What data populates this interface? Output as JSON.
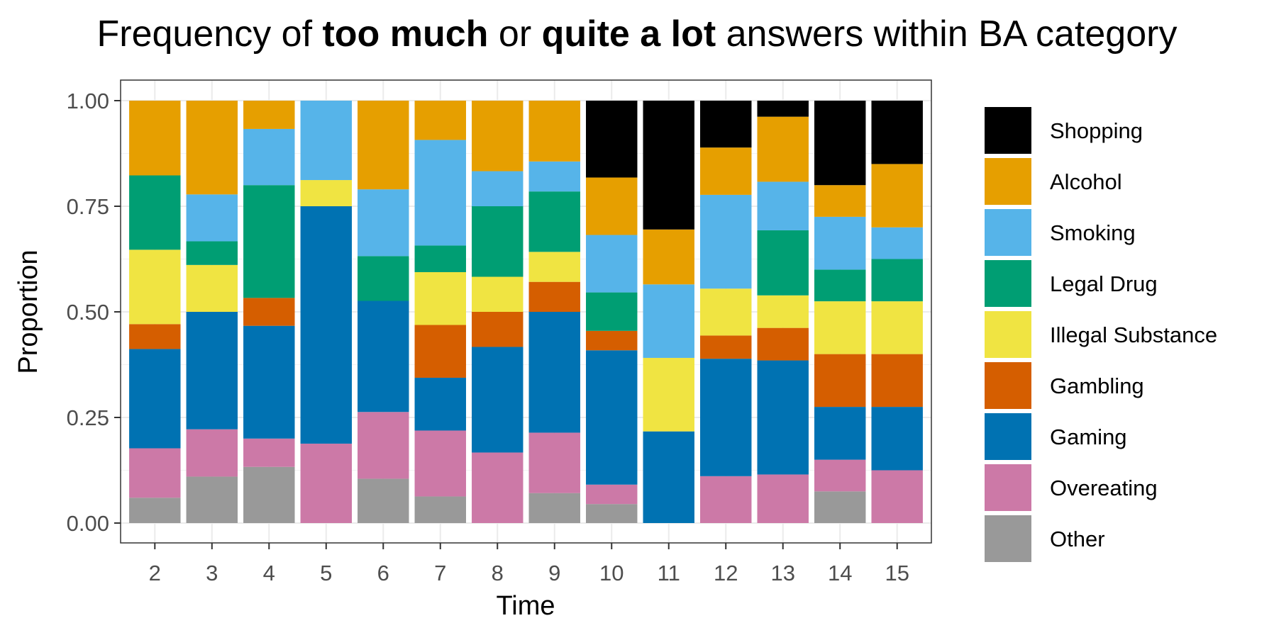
{
  "chart_data": {
    "type": "bar",
    "stacked": true,
    "title_parts": [
      {
        "text": "Frequency of ",
        "bold": false
      },
      {
        "text": "too much",
        "bold": true
      },
      {
        "text": " or ",
        "bold": false
      },
      {
        "text": "quite a lot",
        "bold": true
      },
      {
        "text": " answers within BA category",
        "bold": false
      }
    ],
    "xlabel": "Time",
    "ylabel": "Proportion",
    "ylim": [
      0,
      1
    ],
    "yticks": [
      "0.00",
      "0.25",
      "0.50",
      "0.75",
      "1.00"
    ],
    "ytick_values": [
      0,
      0.25,
      0.5,
      0.75,
      1.0
    ],
    "categories": [
      "2",
      "3",
      "4",
      "5",
      "6",
      "7",
      "8",
      "9",
      "10",
      "11",
      "12",
      "13",
      "14",
      "15"
    ],
    "grid": true,
    "legend_position": "right",
    "series": [
      {
        "name": "Other",
        "color": "#999999",
        "values": [
          0.06,
          0.11,
          0.133,
          0,
          0.105,
          0.063,
          0,
          0.071,
          0.045,
          0,
          0,
          0,
          0.075,
          0
        ]
      },
      {
        "name": "Overeating",
        "color": "#CC79A7",
        "values": [
          0.117,
          0.112,
          0.067,
          0.188,
          0.158,
          0.156,
          0.167,
          0.143,
          0.046,
          0,
          0.111,
          0.115,
          0.075,
          0.125
        ]
      },
      {
        "name": "Gaming",
        "color": "#0072B2",
        "values": [
          0.235,
          0.278,
          0.267,
          0.562,
          0.263,
          0.125,
          0.25,
          0.286,
          0.318,
          0.217,
          0.278,
          0.27,
          0.125,
          0.15
        ]
      },
      {
        "name": "Gambling",
        "color": "#D55E00",
        "values": [
          0.059,
          0,
          0.066,
          0,
          0,
          0.125,
          0.083,
          0.071,
          0.046,
          0,
          0.055,
          0.077,
          0.125,
          0.125
        ]
      },
      {
        "name": "Illegal Substance",
        "color": "#F0E442",
        "values": [
          0.176,
          0.111,
          0,
          0.062,
          0,
          0.125,
          0.083,
          0.071,
          0,
          0.174,
          0.111,
          0.077,
          0.125,
          0.125
        ]
      },
      {
        "name": "Legal Drug",
        "color": "#009E73",
        "values": [
          0.176,
          0.056,
          0.267,
          0,
          0.106,
          0.063,
          0.167,
          0.143,
          0.091,
          0,
          0,
          0.154,
          0.075,
          0.1
        ]
      },
      {
        "name": "Smoking",
        "color": "#56B4E9",
        "values": [
          0,
          0.111,
          0.133,
          0.188,
          0.158,
          0.25,
          0.083,
          0.071,
          0.136,
          0.174,
          0.222,
          0.115,
          0.125,
          0.075
        ]
      },
      {
        "name": "Alcohol",
        "color": "#E69F00",
        "values": [
          0.177,
          0.222,
          0.067,
          0,
          0.21,
          0.093,
          0.167,
          0.144,
          0.136,
          0.13,
          0.112,
          0.154,
          0.075,
          0.15
        ]
      },
      {
        "name": "Shopping",
        "color": "#000000",
        "values": [
          0,
          0,
          0,
          0,
          0,
          0,
          0,
          0,
          0.182,
          0.305,
          0.111,
          0.038,
          0.2,
          0.15
        ]
      }
    ],
    "legend_order": [
      "Shopping",
      "Alcohol",
      "Smoking",
      "Legal Drug",
      "Illegal Substance",
      "Gambling",
      "Gaming",
      "Overeating",
      "Other"
    ]
  }
}
